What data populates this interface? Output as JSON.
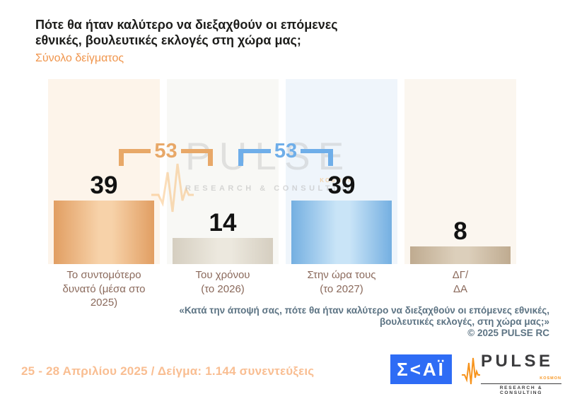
{
  "header": {
    "title_line1": "Πότε θα ήταν καλύτερο να διεξαχθούν οι επόμενες",
    "title_line2": "εθνικές, βουλευτικές εκλογές στη χώρα μας;",
    "subtitle": "Σύνολο δείγματος"
  },
  "chart_data": {
    "type": "bar",
    "title": "Πότε θα ήταν καλύτερο να διεξαχθούν οι επόμενες εθνικές, βουλευτικές εκλογές στη χώρα μας;",
    "subtitle": "Σύνολο δείγματος",
    "categories": [
      "Το συντομότερο δυνατό (μέσα στο 2025)",
      "Του χρόνου (το 2026)",
      "Στην ώρα τους (το 2027)",
      "ΔΓ/ΔΑ"
    ],
    "values": [
      39,
      14,
      39,
      8
    ],
    "unit": "percent of total sample",
    "grid": false,
    "legend": false,
    "ylim": [
      0,
      100
    ],
    "bars": [
      {
        "value": "39",
        "label_line1": "Το συντομότερο",
        "label_line2": "δυνατό (μέσα στο 2025)",
        "edge_color": "#e19e62",
        "light_color": "#f7d2a9",
        "bg_color": "#fdf4ea"
      },
      {
        "value": "14",
        "label_line1": "Του χρόνου",
        "label_line2": "(το 2026)",
        "edge_color": "#d5cec0",
        "light_color": "#ece8de",
        "bg_color": "#f8f8f5"
      },
      {
        "value": "39",
        "label_line1": "Στην ώρα τους",
        "label_line2": "(το 2027)",
        "edge_color": "#74afe1",
        "light_color": "#c9e4f7",
        "bg_color": "#eff5fb"
      },
      {
        "value": "8",
        "label_line1": "ΔΓ/",
        "label_line2": "ΔΑ",
        "edge_color": "#bfab90",
        "light_color": "#dccfbb",
        "bg_color": "#fbf6ef"
      }
    ],
    "annotations": [
      {
        "value": "53",
        "color": "#e8a868",
        "meaning": "sum of bars 2025 + 2026"
      },
      {
        "value": "53",
        "color": "#6faee9",
        "meaning": "sum of bars 2026 + 2027"
      }
    ]
  },
  "watermark": {
    "brand": "PULSE",
    "kosmon": "KOSMON",
    "tagline": "RESEARCH & CONSULTING"
  },
  "footnote": {
    "line1": "«Κατά την άποψή σας, πότε θα ήταν καλύτερο να διεξαχθούν οι επόμενες εθνικές,",
    "line2": "βουλευτικές εκλογές, στη χώρα μας;»",
    "copyright": "©  2025  PULSE RC"
  },
  "footer": {
    "text": "25 - 28 Απριλίου 2025  /  Δείγμα:  1.144 συνεντεύξεις"
  },
  "logos": {
    "skai_text": "Σ<ΑΪ",
    "skai_bg": "#2e6cf5",
    "pulse_name": "PULSE",
    "pulse_kosmon": "KOSMON",
    "pulse_tagline": "RESEARCH & CONSULTING",
    "pulse_orange": "#f7941d"
  }
}
